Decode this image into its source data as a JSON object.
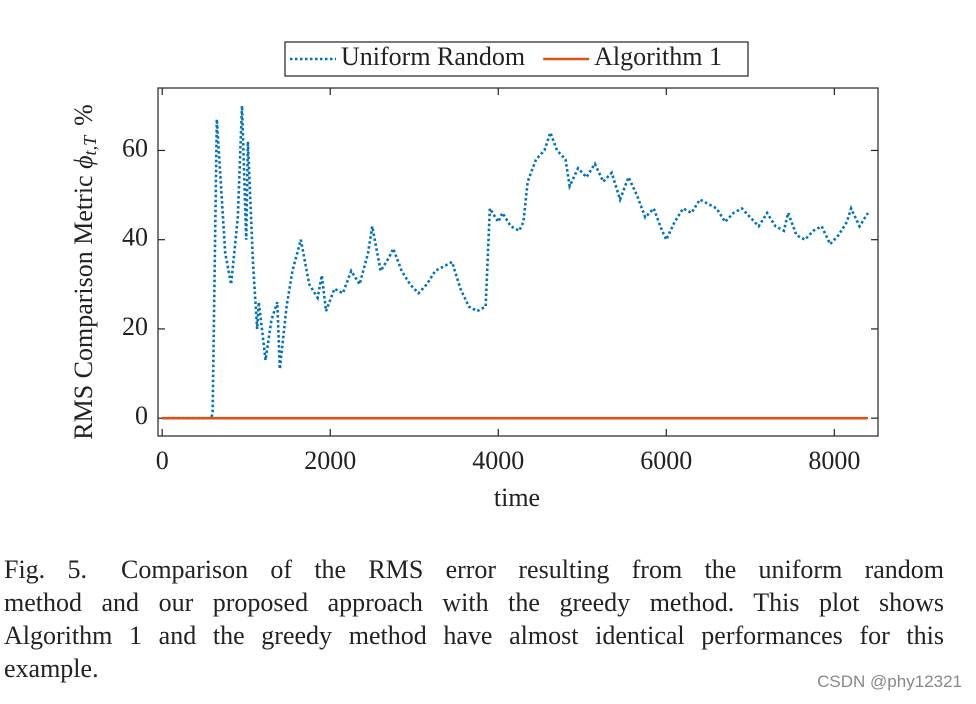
{
  "chart_data": {
    "type": "line",
    "x_label": "time",
    "y_label": "RMS Comparison Metric",
    "y_label_symbol": "ϕ",
    "y_label_subscript": "t,T",
    "y_label_unit": "%",
    "xlim": [
      -50,
      8520
    ],
    "xticks": [
      0,
      2000,
      4000,
      6000,
      8000
    ],
    "ylim": [
      -4,
      74
    ],
    "yticks": [
      0,
      20,
      40,
      60
    ],
    "legend": "top",
    "series": [
      {
        "name": "Uniform Random",
        "color": "#0072bd",
        "style": "dotted",
        "x": [
          0,
          580,
          600,
          650,
          750,
          820,
          900,
          950,
          1000,
          1020,
          1080,
          1130,
          1150,
          1230,
          1300,
          1370,
          1400,
          1480,
          1550,
          1650,
          1750,
          1850,
          1900,
          1950,
          2050,
          2150,
          2250,
          2350,
          2450,
          2500,
          2600,
          2700,
          2750,
          2850,
          2950,
          3050,
          3150,
          3250,
          3350,
          3450,
          3550,
          3650,
          3750,
          3850,
          3900,
          4000,
          4050,
          4150,
          4250,
          4300,
          4350,
          4450,
          4550,
          4620,
          4700,
          4800,
          4850,
          4950,
          5050,
          5150,
          5250,
          5350,
          5450,
          5550,
          5650,
          5750,
          5850,
          5950,
          6000,
          6100,
          6200,
          6300,
          6400,
          6500,
          6600,
          6700,
          6800,
          6900,
          7000,
          7100,
          7200,
          7300,
          7400,
          7450,
          7550,
          7650,
          7750,
          7850,
          7950,
          8050,
          8150,
          8200,
          8300,
          8400
        ],
        "values": [
          0,
          0,
          1,
          67,
          37,
          30,
          45,
          70,
          40,
          62,
          35,
          20,
          26,
          13,
          22,
          26,
          11,
          25,
          33,
          40,
          30,
          27,
          32,
          24,
          29,
          28,
          33,
          30,
          37,
          43,
          33,
          36,
          38,
          33,
          30,
          28,
          30,
          33,
          34,
          35,
          29,
          25,
          24,
          25,
          47,
          44,
          46,
          43,
          42,
          44,
          53,
          58,
          60,
          64,
          60,
          58,
          52,
          56,
          54,
          57,
          53,
          55,
          49,
          54,
          50,
          45,
          47,
          42,
          40,
          44,
          47,
          46,
          49,
          48,
          47,
          44,
          46,
          47,
          45,
          43,
          46,
          43,
          42,
          46,
          41,
          40,
          42,
          43,
          39,
          41,
          44,
          47,
          43,
          46
        ]
      },
      {
        "name": "Algorithm 1",
        "color": "#d95319",
        "style": "solid",
        "x": [
          0,
          8400
        ],
        "values": [
          0,
          0
        ]
      }
    ]
  },
  "caption": {
    "label": "Fig. 5.",
    "lines": [
      "Comparison of the RMS error resulting from the uniform random",
      "method and our proposed approach with the greedy method. This plot shows",
      "Algorithm 1 and the greedy method have almost identical performances for this",
      "example."
    ]
  },
  "watermark": "CSDN @phy12321"
}
